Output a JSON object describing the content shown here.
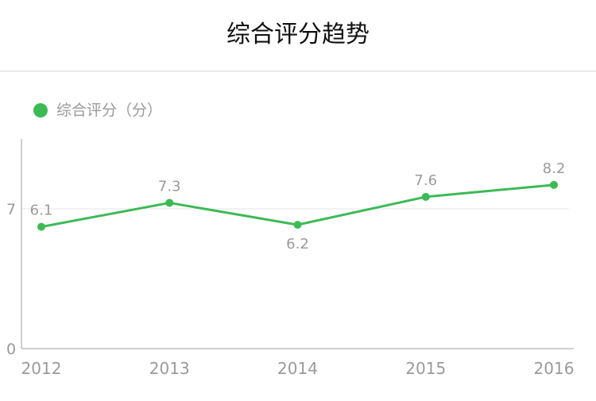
{
  "header": {
    "title": "综合评分趋势"
  },
  "legend": {
    "label": "综合评分（分）"
  },
  "colors": {
    "series": "#3dba56",
    "axis": "#bdbdbd",
    "grid": "#e6e6e6",
    "label": "#9a9a9a"
  },
  "chart_data": {
    "type": "line",
    "title": "综合评分趋势",
    "x": [
      "2012",
      "2013",
      "2014",
      "2015",
      "2016"
    ],
    "series": [
      {
        "name": "综合评分（分）",
        "values": [
          6.1,
          7.3,
          6.2,
          7.6,
          8.2
        ]
      }
    ],
    "data_labels": [
      "6.1",
      "7.3",
      "6.2",
      "7.6",
      "8.2"
    ],
    "y_ticks": [
      "0",
      "7"
    ],
    "ylim": [
      0,
      10.5
    ],
    "y_tick_values": [
      0,
      7
    ],
    "grid": "horizontal",
    "legend_position": "top-left"
  }
}
